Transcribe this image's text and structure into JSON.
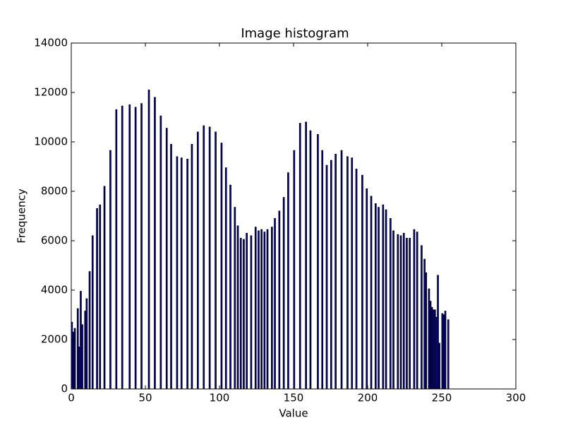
{
  "chart_data": {
    "type": "bar",
    "title": "Image histogram",
    "x_label": "Value",
    "y_label": "Frequency",
    "x": [
      0,
      1,
      2,
      4,
      5,
      6,
      7,
      9,
      10,
      12,
      14,
      17,
      19,
      22,
      26,
      30,
      34,
      39,
      43,
      47,
      52,
      56,
      60,
      64,
      67,
      71,
      74,
      78,
      81,
      85,
      89,
      93,
      97,
      101,
      104,
      107,
      110,
      112,
      114,
      116,
      118,
      121,
      124,
      126,
      128,
      130,
      132,
      135,
      137,
      140,
      143,
      146,
      150,
      154,
      158,
      161,
      166,
      169,
      172,
      175,
      178,
      182,
      186,
      189,
      192,
      196,
      199,
      202,
      205,
      207,
      210,
      212,
      215,
      217,
      220,
      222,
      224,
      226,
      228,
      231,
      233,
      236,
      238,
      239,
      241,
      242,
      243,
      244,
      245,
      246,
      247,
      248,
      250,
      251,
      252,
      254
    ],
    "values": [
      2700,
      2300,
      2450,
      3250,
      1700,
      3950,
      2600,
      3150,
      3650,
      4750,
      6200,
      7300,
      7450,
      8200,
      9650,
      11300,
      11450,
      11500,
      11400,
      11550,
      12100,
      11800,
      11050,
      10550,
      9900,
      9400,
      9350,
      9300,
      9900,
      10400,
      10650,
      10600,
      10400,
      9950,
      8950,
      8250,
      7350,
      6600,
      6100,
      6050,
      6300,
      6200,
      6550,
      6400,
      6450,
      6350,
      6450,
      6550,
      6900,
      7200,
      7750,
      8750,
      9650,
      10750,
      10800,
      10450,
      10300,
      9650,
      9050,
      9250,
      9500,
      9650,
      9400,
      9350,
      8900,
      8650,
      8100,
      7800,
      7500,
      7350,
      7450,
      7250,
      6900,
      6400,
      6250,
      6200,
      6300,
      6100,
      6100,
      6450,
      6350,
      5800,
      5250,
      4700,
      4050,
      3550,
      3300,
      3200,
      3200,
      2900,
      4600,
      1850,
      3050,
      3000,
      3150,
      2800
    ],
    "color": "#0000ff",
    "edgecolor": "#000000",
    "xlim": [
      0,
      300
    ],
    "xticks": [
      0,
      50,
      100,
      150,
      200,
      250,
      300
    ],
    "ylim": [
      0,
      14000
    ],
    "yticks": [
      0,
      2000,
      4000,
      6000,
      8000,
      10000,
      12000,
      14000
    ],
    "grid": false
  }
}
